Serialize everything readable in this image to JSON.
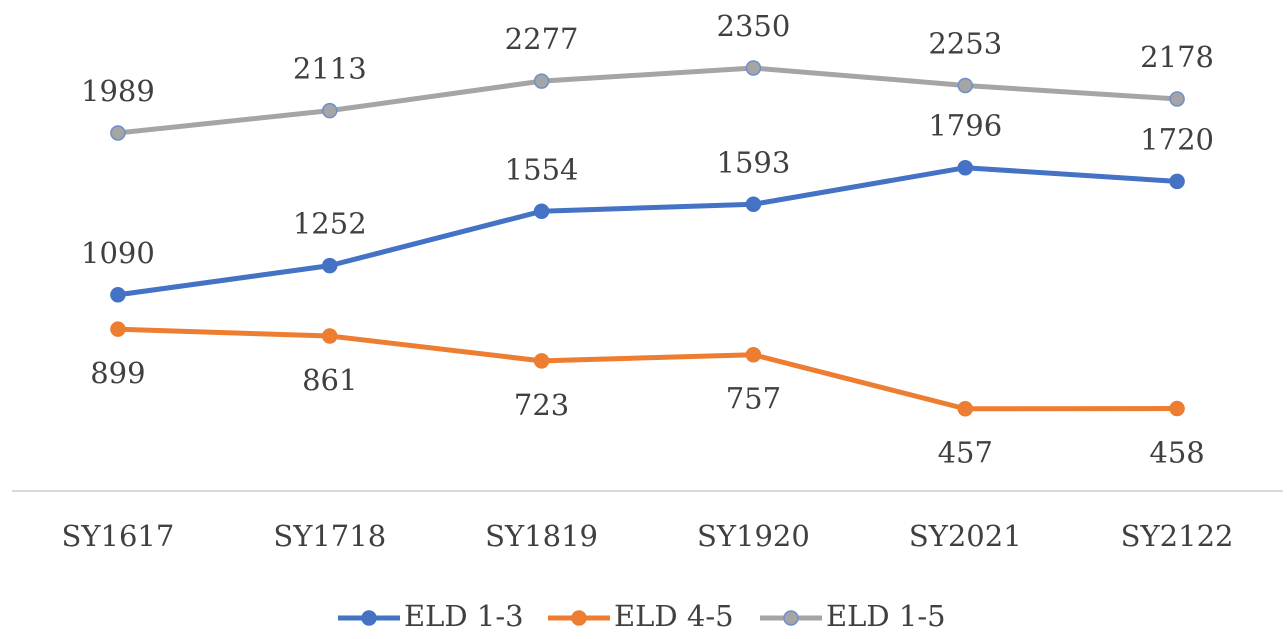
{
  "chart_data": {
    "type": "line",
    "categories": [
      "SY1617",
      "SY1718",
      "SY1819",
      "SY1920",
      "SY2021",
      "SY2122"
    ],
    "series": [
      {
        "name": "ELD 1-3",
        "color": "#4472c4",
        "values": [
          1090,
          1252,
          1554,
          1593,
          1796,
          1720
        ]
      },
      {
        "name": "ELD 4-5",
        "color": "#ed7d31",
        "values": [
          899,
          861,
          723,
          757,
          457,
          458
        ]
      },
      {
        "name": "ELD 1-5",
        "color": "#a5a5a5",
        "values": [
          1989,
          2113,
          2277,
          2350,
          2253,
          2178
        ]
      }
    ],
    "ylim": [
      0,
      2500
    ],
    "legend": "bottom"
  }
}
